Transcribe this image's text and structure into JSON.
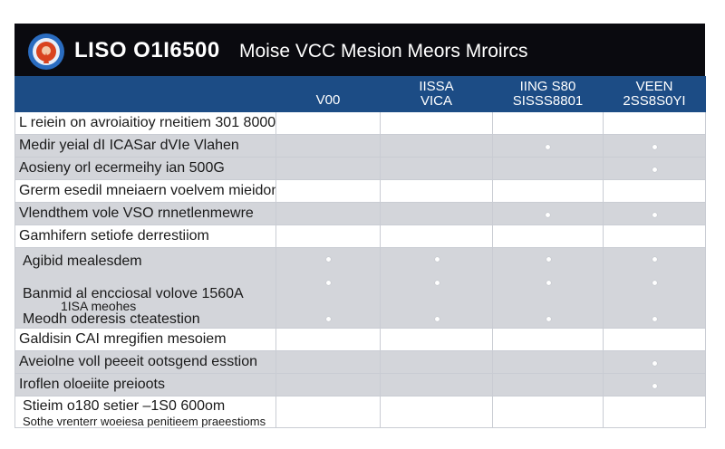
{
  "header": {
    "code": "LISO O1I6500",
    "title": "Moise VCC Mesion Meors Mroircs",
    "logo_icon": "target-logo-icon"
  },
  "columns": [
    {
      "line1": "",
      "line2": ""
    },
    {
      "line1": "",
      "line2": "V00"
    },
    {
      "line1": "IISSA",
      "line2": "VICA"
    },
    {
      "line1": "IING S80",
      "line2": "SISSS8801"
    },
    {
      "line1": "VEEN",
      "line2": "2SS8S0YI"
    }
  ],
  "rows": [
    {
      "label": "L reiein on avroiaitioy rneitiem 301 8000",
      "style": "white",
      "dots": [
        false,
        false,
        false,
        false
      ]
    },
    {
      "label": "Medir yeial dI ICASar dVIe Vlahen",
      "style": "gray",
      "dots": [
        false,
        false,
        true,
        true
      ]
    },
    {
      "label": "Aosieny orl ecermeihy ian 500G",
      "style": "gray",
      "dots": [
        false,
        false,
        false,
        true
      ]
    },
    {
      "label": "Grerm esedil mneiaern voelvem mieidon",
      "style": "white",
      "dots": [
        false,
        false,
        false,
        false
      ]
    },
    {
      "label": "Vlendthem vole VSO rnnetlenmewre",
      "style": "gray",
      "dots": [
        false,
        false,
        true,
        true
      ]
    },
    {
      "label": "Gamhifern setiofe derrestiiom",
      "style": "white",
      "dots": [
        false,
        false,
        false,
        false
      ]
    },
    {
      "label": "Agibid mealesdem",
      "label2": "Banmid al encciosal volove 1560A",
      "label3": "1ISA meohes",
      "label4": "Meodh oderesis cteatestion",
      "style": "tall",
      "dots": [
        true,
        true,
        true,
        true
      ]
    },
    {
      "label": "Galdisin CAI mregifien mesoiem",
      "style": "white",
      "dots": [
        false,
        false,
        false,
        false
      ]
    },
    {
      "label": "Aveiolne voll peeeit ootsgend esstion",
      "style": "gray",
      "dots": [
        false,
        false,
        false,
        true
      ]
    },
    {
      "label": "Iroflen oloeiite preioots",
      "style": "gray",
      "dots": [
        false,
        false,
        false,
        true
      ]
    },
    {
      "label": "Stieim o180 setier –1S0 600om",
      "label2": "Sothe vrenterr woeiesa penitieem praeestioms",
      "style": "last",
      "dots": [
        false,
        false,
        false,
        false
      ]
    }
  ]
}
